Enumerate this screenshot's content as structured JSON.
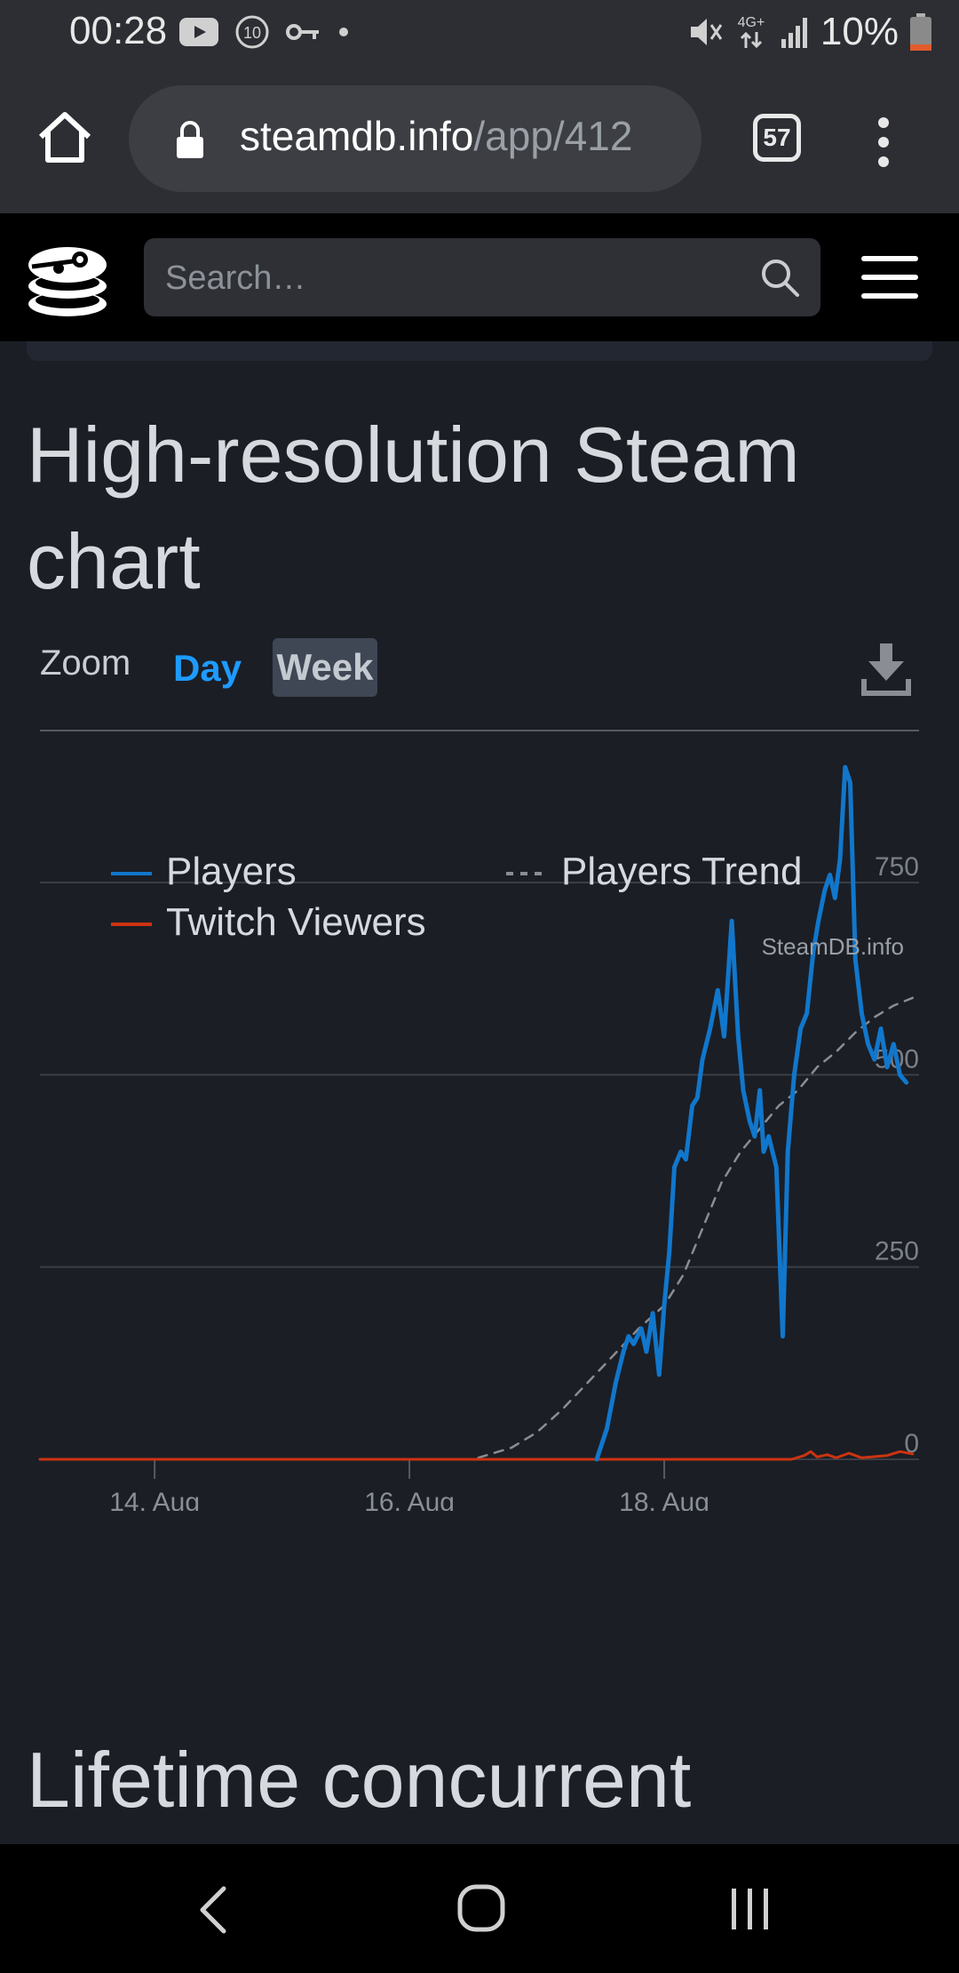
{
  "status_bar": {
    "time": "00:28",
    "notification_count": "10",
    "battery": "10%",
    "network": "4G+",
    "icons": [
      "youtube-icon",
      "notification-count-icon",
      "key-icon",
      "dot-icon",
      "mute-icon",
      "network-4g-icon",
      "signal-icon",
      "battery-icon"
    ]
  },
  "browser": {
    "url_domain": "steamdb.info",
    "url_path": "/app/412",
    "tab_count": "57",
    "icons": [
      "home-icon",
      "lock-icon",
      "tabs-icon",
      "more-vert-icon"
    ]
  },
  "site_header": {
    "search_placeholder": "Search…",
    "icons": [
      "steamdb-logo-icon",
      "search-icon",
      "hamburger-menu-icon"
    ]
  },
  "section": {
    "title": "High-resolution Steam chart",
    "zoom_label": "Zoom",
    "zoom_options": [
      "Day",
      "Week"
    ],
    "zoom_selected": "Week",
    "download_icon": "download-icon"
  },
  "colors": {
    "players": "#1177cc",
    "trend": "#8a8d93",
    "twitch": "#cc3311",
    "background": "#1b1e25",
    "accent": "#1e9bff"
  },
  "chart_data": {
    "type": "line",
    "title": "",
    "xlabel": "",
    "ylabel": "",
    "x_ticks": [
      "14. Aug",
      "16. Aug",
      "18. Aug"
    ],
    "y_ticks": [
      0,
      250,
      500,
      750
    ],
    "ylim": [
      0,
      950
    ],
    "x_range_days": [
      13.1,
      20.0
    ],
    "legend": [
      "Players",
      "Players Trend",
      "Twitch Viewers"
    ],
    "legend_position": "bottom",
    "credit": "SteamDB.info",
    "series": [
      {
        "name": "Players",
        "style": "solid",
        "points": [
          [
            17.47,
            0
          ],
          [
            17.55,
            40
          ],
          [
            17.62,
            100
          ],
          [
            17.68,
            140
          ],
          [
            17.72,
            160
          ],
          [
            17.76,
            150
          ],
          [
            17.82,
            170
          ],
          [
            17.86,
            140
          ],
          [
            17.91,
            190
          ],
          [
            17.96,
            110
          ],
          [
            18.0,
            200
          ],
          [
            18.04,
            270
          ],
          [
            18.08,
            380
          ],
          [
            18.13,
            400
          ],
          [
            18.17,
            390
          ],
          [
            18.22,
            460
          ],
          [
            18.26,
            470
          ],
          [
            18.3,
            520
          ],
          [
            18.36,
            560
          ],
          [
            18.42,
            610
          ],
          [
            18.47,
            550
          ],
          [
            18.53,
            700
          ],
          [
            18.58,
            550
          ],
          [
            18.62,
            480
          ],
          [
            18.67,
            440
          ],
          [
            18.71,
            420
          ],
          [
            18.75,
            480
          ],
          [
            18.78,
            400
          ],
          [
            18.82,
            420
          ],
          [
            18.88,
            380
          ],
          [
            18.93,
            160
          ],
          [
            18.97,
            400
          ],
          [
            19.02,
            500
          ],
          [
            19.07,
            560
          ],
          [
            19.12,
            580
          ],
          [
            19.17,
            660
          ],
          [
            19.21,
            700
          ],
          [
            19.26,
            740
          ],
          [
            19.3,
            760
          ],
          [
            19.34,
            730
          ],
          [
            19.38,
            780
          ],
          [
            19.42,
            900
          ],
          [
            19.46,
            880
          ],
          [
            19.5,
            650
          ],
          [
            19.55,
            580
          ],
          [
            19.6,
            540
          ],
          [
            19.65,
            520
          ],
          [
            19.7,
            560
          ],
          [
            19.75,
            510
          ],
          [
            19.8,
            540
          ],
          [
            19.85,
            500
          ],
          [
            19.9,
            490
          ]
        ]
      },
      {
        "name": "Players Trend",
        "style": "dashed",
        "points": [
          [
            13.1,
            0
          ],
          [
            16.5,
            0
          ],
          [
            16.8,
            15
          ],
          [
            17.0,
            35
          ],
          [
            17.2,
            65
          ],
          [
            17.4,
            100
          ],
          [
            17.6,
            135
          ],
          [
            17.8,
            170
          ],
          [
            18.0,
            200
          ],
          [
            18.15,
            240
          ],
          [
            18.3,
            300
          ],
          [
            18.45,
            360
          ],
          [
            18.6,
            400
          ],
          [
            18.75,
            430
          ],
          [
            18.9,
            460
          ],
          [
            19.05,
            480
          ],
          [
            19.2,
            510
          ],
          [
            19.35,
            530
          ],
          [
            19.5,
            555
          ],
          [
            19.65,
            575
          ],
          [
            19.8,
            590
          ],
          [
            19.95,
            600
          ]
        ]
      },
      {
        "name": "Twitch Viewers",
        "style": "solid",
        "points": [
          [
            13.1,
            0
          ],
          [
            19.0,
            0
          ],
          [
            19.1,
            5
          ],
          [
            19.15,
            10
          ],
          [
            19.2,
            3
          ],
          [
            19.28,
            6
          ],
          [
            19.35,
            2
          ],
          [
            19.45,
            8
          ],
          [
            19.55,
            2
          ],
          [
            19.75,
            5
          ],
          [
            19.85,
            10
          ],
          [
            19.95,
            7
          ]
        ]
      }
    ]
  },
  "next_section": {
    "title": "Lifetime concurrent"
  },
  "nav_bar": {
    "icons": [
      "back-icon",
      "home-circle-icon",
      "recents-icon"
    ]
  }
}
